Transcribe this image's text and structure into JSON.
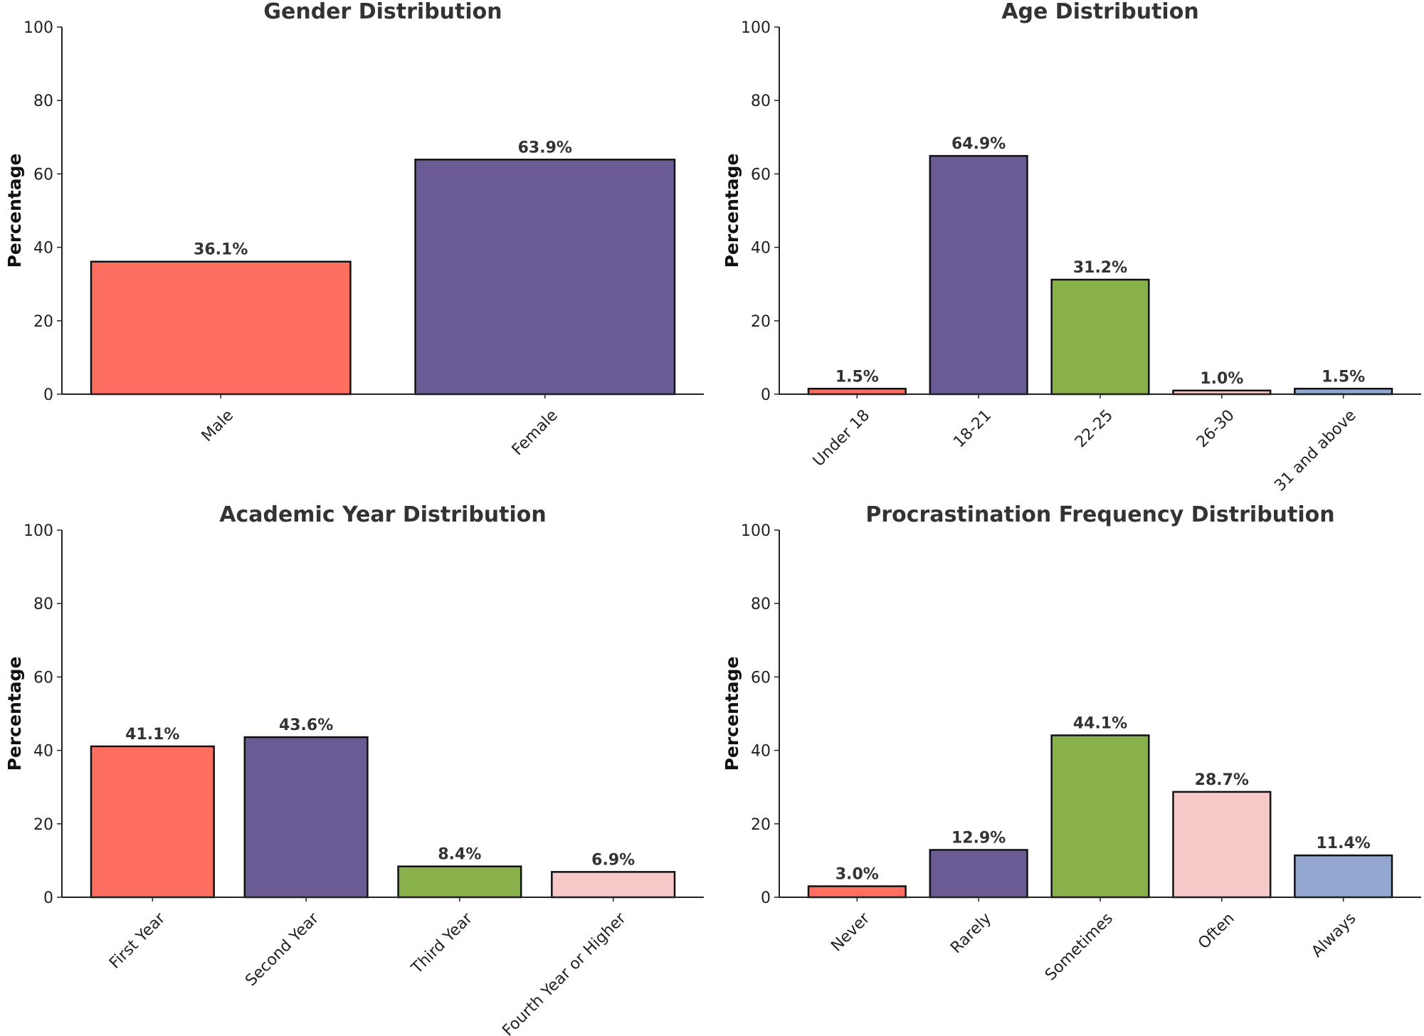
{
  "colors": [
    "#FF6F61",
    "#6B5B95",
    "#88B04B",
    "#F7CAC9",
    "#92A8D1"
  ],
  "chart_data": [
    {
      "type": "bar",
      "title": "Gender Distribution",
      "xlabel": "",
      "ylabel": "Percentage",
      "ylim": [
        0,
        100
      ],
      "yticks": [
        0,
        20,
        40,
        60,
        80,
        100
      ],
      "categories": [
        "Male",
        "Female"
      ],
      "values": [
        36.1,
        63.9
      ],
      "labels": [
        "36.1%",
        "63.9%"
      ]
    },
    {
      "type": "bar",
      "title": "Age Distribution",
      "xlabel": "",
      "ylabel": "Percentage",
      "ylim": [
        0,
        100
      ],
      "yticks": [
        0,
        20,
        40,
        60,
        80,
        100
      ],
      "categories": [
        "Under 18",
        "18-21",
        "22-25",
        "26-30",
        "31 and above"
      ],
      "values": [
        1.5,
        64.9,
        31.2,
        1.0,
        1.5
      ],
      "labels": [
        "1.5%",
        "64.9%",
        "31.2%",
        "1.0%",
        "1.5%"
      ]
    },
    {
      "type": "bar",
      "title": "Academic Year Distribution",
      "xlabel": "",
      "ylabel": "Percentage",
      "ylim": [
        0,
        100
      ],
      "yticks": [
        0,
        20,
        40,
        60,
        80,
        100
      ],
      "categories": [
        "First Year",
        "Second Year",
        "Third Year",
        "Fourth Year or Higher"
      ],
      "values": [
        41.1,
        43.6,
        8.4,
        6.9
      ],
      "labels": [
        "41.1%",
        "43.6%",
        "8.4%",
        "6.9%"
      ]
    },
    {
      "type": "bar",
      "title": "Procrastination Frequency Distribution",
      "xlabel": "",
      "ylabel": "Percentage",
      "ylim": [
        0,
        100
      ],
      "yticks": [
        0,
        20,
        40,
        60,
        80,
        100
      ],
      "categories": [
        "Never",
        "Rarely",
        "Sometimes",
        "Often",
        "Always"
      ],
      "values": [
        3.0,
        12.9,
        44.1,
        28.7,
        11.4
      ],
      "labels": [
        "3.0%",
        "12.9%",
        "44.1%",
        "28.7%",
        "11.4%"
      ]
    }
  ]
}
